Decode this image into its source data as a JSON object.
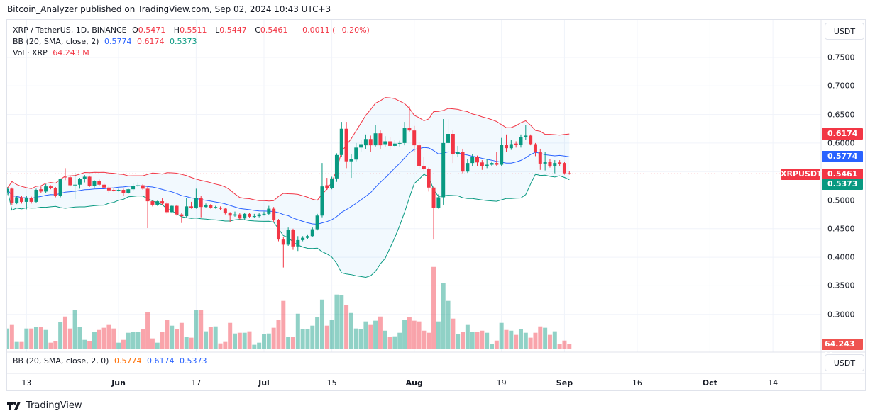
{
  "publication": "Bitcoin_Analyzer published on TradingView.com, Sep 02, 2024 10:43 UTC+3",
  "legend": {
    "symbol": "XRP / TetherUS, 1D, BINANCE",
    "o_label": "O",
    "open": "0.5471",
    "h_label": "H",
    "high": "0.5511",
    "l_label": "L",
    "low": "0.5447",
    "c_label": "C",
    "close": "0.5461",
    "change": "−0.0011 (−0.20%)",
    "bb_label": "BB (20, SMA, close, 2)",
    "bb_basis": "0.5774",
    "bb_upper": "0.6174",
    "bb_lower": "0.5373",
    "vol_label": "Vol · XRP",
    "vol_value": "64.243 M"
  },
  "lower_pane": {
    "bb_label": "BB (20, SMA, close, 2, 0)",
    "bb_basis": "0.5774",
    "bb_upper": "0.6174",
    "bb_lower": "0.5373",
    "currency_button": "USDT"
  },
  "price_axis": {
    "currency_button": "USDT",
    "ticks": [
      "0.7500",
      "0.7000",
      "0.6500",
      "0.6000",
      "0.5000",
      "0.4500",
      "0.4000",
      "0.3500",
      "0.3000"
    ],
    "tick_values": [
      0.75,
      0.7,
      0.65,
      0.6,
      0.5,
      0.45,
      0.4,
      0.35,
      0.3
    ],
    "tags": {
      "upper": "0.6174",
      "basis": "0.5774",
      "last": "0.5461",
      "lower": "0.5373",
      "symbol": "XRPUSDT",
      "volume": "64.243 M"
    }
  },
  "time_axis": [
    {
      "label": "13",
      "date": "2024-05-13",
      "major": false
    },
    {
      "label": "Jun",
      "date": "2024-06-01",
      "major": true
    },
    {
      "label": "17",
      "date": "2024-06-17",
      "major": false
    },
    {
      "label": "Jul",
      "date": "2024-07-01",
      "major": true
    },
    {
      "label": "15",
      "date": "2024-07-15",
      "major": false
    },
    {
      "label": "Aug",
      "date": "2024-08-01",
      "major": true
    },
    {
      "label": "19",
      "date": "2024-08-19",
      "major": false
    },
    {
      "label": "Sep",
      "date": "2024-09-01",
      "major": true
    },
    {
      "label": "16",
      "date": "2024-09-16",
      "major": false
    },
    {
      "label": "Oct",
      "date": "2024-10-01",
      "major": true
    },
    {
      "label": "14",
      "date": "2024-10-14",
      "major": false
    }
  ],
  "colors": {
    "up": "#089981",
    "down": "#f23645",
    "basis": "#2962ff",
    "upper": "#f23645",
    "lower": "#089981",
    "band_fill": "#2196f3",
    "grid": "#f0f3fa"
  },
  "footer": {
    "brand": "TradingView"
  },
  "chart_data": {
    "type": "candlestick",
    "interval": "1D",
    "y_range": [
      0.28,
      0.78
    ],
    "price_scale_ticks": [
      0.3,
      0.35,
      0.4,
      0.45,
      0.5,
      0.6,
      0.65,
      0.7,
      0.75
    ],
    "volume_unit": "M",
    "bollinger": {
      "length": 20,
      "type": "SMA",
      "source": "close",
      "mult": 2
    },
    "columns": [
      "date",
      "open",
      "high",
      "low",
      "close",
      "volume"
    ],
    "candles": [
      [
        "2024-05-09",
        0.514,
        0.523,
        0.509,
        0.52,
        258
      ],
      [
        "2024-05-10",
        0.52,
        0.522,
        0.492,
        0.495,
        302
      ],
      [
        "2024-05-11",
        0.495,
        0.507,
        0.493,
        0.505,
        91
      ],
      [
        "2024-05-12",
        0.505,
        0.507,
        0.494,
        0.497,
        91
      ],
      [
        "2024-05-13",
        0.497,
        0.508,
        0.484,
        0.504,
        258
      ],
      [
        "2024-05-14",
        0.504,
        0.506,
        0.494,
        0.497,
        258
      ],
      [
        "2024-05-15",
        0.497,
        0.52,
        0.495,
        0.518,
        275
      ],
      [
        "2024-05-16",
        0.519,
        0.524,
        0.513,
        0.515,
        275
      ],
      [
        "2024-05-17",
        0.515,
        0.528,
        0.513,
        0.524,
        240
      ],
      [
        "2024-05-18",
        0.524,
        0.526,
        0.519,
        0.521,
        82
      ],
      [
        "2024-05-19",
        0.521,
        0.523,
        0.505,
        0.507,
        100
      ],
      [
        "2024-05-20",
        0.507,
        0.538,
        0.505,
        0.537,
        337
      ],
      [
        "2024-05-21",
        0.541,
        0.556,
        0.535,
        0.54,
        407
      ],
      [
        "2024-05-22",
        0.54,
        0.543,
        0.524,
        0.526,
        258
      ],
      [
        "2024-05-23",
        0.526,
        0.548,
        0.502,
        0.527,
        486
      ],
      [
        "2024-05-24",
        0.527,
        0.539,
        0.52,
        0.537,
        275
      ],
      [
        "2024-05-25",
        0.537,
        0.544,
        0.531,
        0.541,
        117
      ],
      [
        "2024-05-26",
        0.541,
        0.543,
        0.523,
        0.525,
        100
      ],
      [
        "2024-05-27",
        0.525,
        0.535,
        0.522,
        0.533,
        214
      ],
      [
        "2024-05-28",
        0.533,
        0.536,
        0.525,
        0.527,
        240
      ],
      [
        "2024-05-29",
        0.527,
        0.529,
        0.52,
        0.522,
        267
      ],
      [
        "2024-05-30",
        0.522,
        0.525,
        0.513,
        0.517,
        302
      ],
      [
        "2024-05-31",
        0.518,
        0.521,
        0.515,
        0.517,
        258
      ],
      [
        "2024-06-01",
        0.517,
        0.52,
        0.515,
        0.518,
        82
      ],
      [
        "2024-06-02",
        0.518,
        0.52,
        0.508,
        0.513,
        117
      ],
      [
        "2024-06-03",
        0.513,
        0.52,
        0.511,
        0.519,
        205
      ],
      [
        "2024-06-04",
        0.519,
        0.53,
        0.517,
        0.525,
        214
      ],
      [
        "2024-06-05",
        0.525,
        0.531,
        0.523,
        0.526,
        214
      ],
      [
        "2024-06-06",
        0.526,
        0.528,
        0.518,
        0.52,
        249
      ],
      [
        "2024-06-07",
        0.52,
        0.524,
        0.451,
        0.498,
        460
      ],
      [
        "2024-06-08",
        0.498,
        0.5,
        0.489,
        0.492,
        135
      ],
      [
        "2024-06-09",
        0.492,
        0.499,
        0.49,
        0.498,
        82
      ],
      [
        "2024-06-10",
        0.498,
        0.503,
        0.492,
        0.494,
        214
      ],
      [
        "2024-06-11",
        0.494,
        0.497,
        0.476,
        0.479,
        363
      ],
      [
        "2024-06-12",
        0.479,
        0.492,
        0.477,
        0.49,
        293
      ],
      [
        "2024-06-13",
        0.49,
        0.492,
        0.473,
        0.475,
        249
      ],
      [
        "2024-06-14",
        0.475,
        0.477,
        0.46,
        0.472,
        328
      ],
      [
        "2024-06-15",
        0.472,
        0.504,
        0.47,
        0.489,
        152
      ],
      [
        "2024-06-16",
        0.489,
        0.497,
        0.485,
        0.487,
        144
      ],
      [
        "2024-06-17",
        0.487,
        0.52,
        0.485,
        0.504,
        486
      ],
      [
        "2024-06-18",
        0.504,
        0.507,
        0.47,
        0.488,
        486
      ],
      [
        "2024-06-19",
        0.488,
        0.494,
        0.486,
        0.491,
        223
      ],
      [
        "2024-06-20",
        0.491,
        0.493,
        0.485,
        0.487,
        275
      ],
      [
        "2024-06-21",
        0.487,
        0.49,
        0.485,
        0.488,
        284
      ],
      [
        "2024-06-22",
        0.487,
        0.489,
        0.483,
        0.485,
        73
      ],
      [
        "2024-06-23",
        0.485,
        0.487,
        0.475,
        0.477,
        91
      ],
      [
        "2024-06-24",
        0.477,
        0.479,
        0.462,
        0.473,
        328
      ],
      [
        "2024-06-25",
        0.473,
        0.48,
        0.471,
        0.475,
        196
      ],
      [
        "2024-06-26",
        0.475,
        0.477,
        0.466,
        0.468,
        205
      ],
      [
        "2024-06-27",
        0.468,
        0.478,
        0.466,
        0.476,
        205
      ],
      [
        "2024-06-28",
        0.476,
        0.478,
        0.469,
        0.471,
        223
      ],
      [
        "2024-06-29",
        0.471,
        0.476,
        0.469,
        0.472,
        56
      ],
      [
        "2024-06-30",
        0.472,
        0.477,
        0.47,
        0.475,
        82
      ],
      [
        "2024-07-01",
        0.475,
        0.48,
        0.473,
        0.476,
        188
      ],
      [
        "2024-07-02",
        0.476,
        0.49,
        0.474,
        0.485,
        196
      ],
      [
        "2024-07-03",
        0.485,
        0.488,
        0.462,
        0.465,
        267
      ],
      [
        "2024-07-04",
        0.465,
        0.467,
        0.428,
        0.431,
        363
      ],
      [
        "2024-07-05",
        0.431,
        0.435,
        0.382,
        0.422,
        601
      ],
      [
        "2024-07-06",
        0.422,
        0.452,
        0.42,
        0.448,
        152
      ],
      [
        "2024-07-07",
        0.448,
        0.45,
        0.413,
        0.419,
        152
      ],
      [
        "2024-07-08",
        0.419,
        0.437,
        0.411,
        0.43,
        442
      ],
      [
        "2024-07-09",
        0.43,
        0.437,
        0.428,
        0.434,
        249
      ],
      [
        "2024-07-10",
        0.434,
        0.44,
        0.432,
        0.437,
        249
      ],
      [
        "2024-07-11",
        0.437,
        0.452,
        0.435,
        0.449,
        293
      ],
      [
        "2024-07-12",
        0.449,
        0.476,
        0.447,
        0.473,
        398
      ],
      [
        "2024-07-13",
        0.473,
        0.565,
        0.47,
        0.524,
        618
      ],
      [
        "2024-07-14",
        0.526,
        0.539,
        0.518,
        0.521,
        293
      ],
      [
        "2024-07-15",
        0.521,
        0.541,
        0.519,
        0.538,
        363
      ],
      [
        "2024-07-16",
        0.538,
        0.582,
        0.532,
        0.579,
        680
      ],
      [
        "2024-07-17",
        0.579,
        0.637,
        0.576,
        0.625,
        671
      ],
      [
        "2024-07-18",
        0.625,
        0.637,
        0.556,
        0.568,
        548
      ],
      [
        "2024-07-19",
        0.568,
        0.581,
        0.539,
        0.572,
        451
      ],
      [
        "2024-07-20",
        0.571,
        0.6,
        0.568,
        0.592,
        258
      ],
      [
        "2024-07-21",
        0.592,
        0.605,
        0.585,
        0.598,
        249
      ],
      [
        "2024-07-22",
        0.596,
        0.615,
        0.59,
        0.607,
        346
      ],
      [
        "2024-07-23",
        0.607,
        0.613,
        0.585,
        0.596,
        302
      ],
      [
        "2024-07-24",
        0.596,
        0.632,
        0.594,
        0.617,
        355
      ],
      [
        "2024-07-25",
        0.617,
        0.622,
        0.59,
        0.596,
        407
      ],
      [
        "2024-07-26",
        0.598,
        0.612,
        0.594,
        0.603,
        231
      ],
      [
        "2024-07-27",
        0.603,
        0.61,
        0.588,
        0.595,
        152
      ],
      [
        "2024-07-28",
        0.595,
        0.605,
        0.593,
        0.599,
        161
      ],
      [
        "2024-07-29",
        0.599,
        0.604,
        0.594,
        0.6,
        205
      ],
      [
        "2024-07-30",
        0.6,
        0.637,
        0.596,
        0.627,
        363
      ],
      [
        "2024-07-31",
        0.627,
        0.664,
        0.62,
        0.622,
        398
      ],
      [
        "2024-08-01",
        0.622,
        0.63,
        0.585,
        0.596,
        355
      ],
      [
        "2024-08-02",
        0.596,
        0.602,
        0.555,
        0.559,
        346
      ],
      [
        "2024-08-03",
        0.559,
        0.576,
        0.552,
        0.554,
        231
      ],
      [
        "2024-08-04",
        0.554,
        0.557,
        0.515,
        0.522,
        205
      ],
      [
        "2024-08-05",
        0.522,
        0.525,
        0.431,
        0.487,
        1023
      ],
      [
        "2024-08-06",
        0.487,
        0.51,
        0.485,
        0.505,
        346
      ],
      [
        "2024-08-07",
        0.505,
        0.642,
        0.492,
        0.6,
        820
      ],
      [
        "2024-08-08",
        0.6,
        0.642,
        0.598,
        0.616,
        601
      ],
      [
        "2024-08-09",
        0.616,
        0.623,
        0.565,
        0.58,
        381
      ],
      [
        "2024-08-10",
        0.58,
        0.595,
        0.575,
        0.584,
        188
      ],
      [
        "2024-08-11",
        0.584,
        0.59,
        0.547,
        0.55,
        214
      ],
      [
        "2024-08-12",
        0.55,
        0.572,
        0.548,
        0.565,
        302
      ],
      [
        "2024-08-13",
        0.565,
        0.58,
        0.56,
        0.576,
        214
      ],
      [
        "2024-08-14",
        0.576,
        0.578,
        0.56,
        0.566,
        214
      ],
      [
        "2024-08-15",
        0.566,
        0.57,
        0.553,
        0.56,
        231
      ],
      [
        "2024-08-16",
        0.56,
        0.572,
        0.556,
        0.562,
        205
      ],
      [
        "2024-08-17",
        0.562,
        0.568,
        0.559,
        0.565,
        64
      ],
      [
        "2024-08-18",
        0.565,
        0.584,
        0.56,
        0.562,
        108
      ],
      [
        "2024-08-19",
        0.562,
        0.609,
        0.56,
        0.597,
        328
      ],
      [
        "2024-08-20",
        0.597,
        0.615,
        0.585,
        0.591,
        240
      ],
      [
        "2024-08-21",
        0.591,
        0.606,
        0.588,
        0.598,
        231
      ],
      [
        "2024-08-22",
        0.599,
        0.603,
        0.592,
        0.597,
        179
      ],
      [
        "2024-08-23",
        0.597,
        0.615,
        0.592,
        0.61,
        249
      ],
      [
        "2024-08-24",
        0.61,
        0.631,
        0.606,
        0.613,
        205
      ],
      [
        "2024-08-25",
        0.613,
        0.615,
        0.596,
        0.598,
        144
      ],
      [
        "2024-08-26",
        0.598,
        0.6,
        0.577,
        0.585,
        205
      ],
      [
        "2024-08-27",
        0.585,
        0.59,
        0.553,
        0.564,
        284
      ],
      [
        "2024-08-28",
        0.564,
        0.585,
        0.552,
        0.567,
        267
      ],
      [
        "2024-08-29",
        0.567,
        0.572,
        0.557,
        0.56,
        179
      ],
      [
        "2024-08-30",
        0.56,
        0.57,
        0.547,
        0.565,
        223
      ],
      [
        "2024-08-31",
        0.566,
        0.57,
        0.56,
        0.564,
        64
      ],
      [
        "2024-09-01",
        0.565,
        0.567,
        0.5447,
        0.547,
        108
      ],
      [
        "2024-09-02",
        0.5471,
        0.5511,
        0.5447,
        0.5461,
        64.243
      ]
    ]
  }
}
